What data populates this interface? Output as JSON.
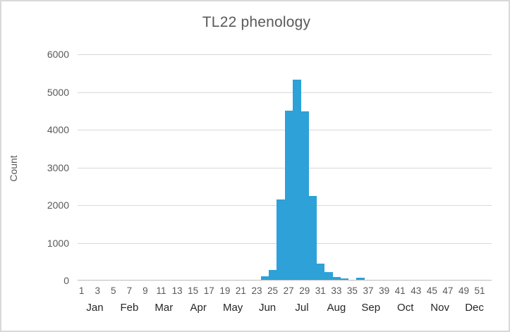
{
  "window": {
    "background_color": "#ffffff",
    "frame_border_color": "#d9d9d9"
  },
  "chart_data": {
    "type": "bar",
    "title": "TL22 phenology",
    "ylabel": "Count",
    "xlabel": "",
    "ylim": [
      0,
      6000
    ],
    "yticks": [
      0,
      1000,
      2000,
      3000,
      4000,
      5000,
      6000
    ],
    "grid": true,
    "legend": false,
    "gap_width": 0,
    "x_axis": {
      "unit": "week-of-year",
      "total_weeks": 52,
      "week_tick_labels": [
        1,
        3,
        5,
        7,
        9,
        11,
        13,
        15,
        17,
        19,
        21,
        23,
        25,
        27,
        29,
        31,
        33,
        35,
        37,
        39,
        41,
        43,
        45,
        47,
        49,
        51
      ],
      "month_labels": [
        "Jan",
        "Feb",
        "Mar",
        "Apr",
        "May",
        "Jun",
        "Jul",
        "Aug",
        "Sep",
        "Oct",
        "Nov",
        "Dec"
      ]
    },
    "series": [
      {
        "name": "Count",
        "points": [
          {
            "week": 24,
            "count": 90
          },
          {
            "week": 25,
            "count": 270
          },
          {
            "week": 26,
            "count": 2130
          },
          {
            "week": 27,
            "count": 4480
          },
          {
            "week": 28,
            "count": 5300
          },
          {
            "week": 29,
            "count": 4460
          },
          {
            "week": 30,
            "count": 2230
          },
          {
            "week": 31,
            "count": 430
          },
          {
            "week": 32,
            "count": 200
          },
          {
            "week": 33,
            "count": 75
          },
          {
            "week": 34,
            "count": 30
          },
          {
            "week": 36,
            "count": 60
          }
        ]
      }
    ],
    "colors": {
      "bar": "#2da1d8",
      "gridline": "#d9d9d9",
      "axis_line": "#bdbdbd",
      "title_text": "#595959",
      "y_tick_text": "#595959",
      "week_tick_text": "#595959",
      "month_text": "#262626",
      "y_axis_title_text": "#595959"
    }
  }
}
